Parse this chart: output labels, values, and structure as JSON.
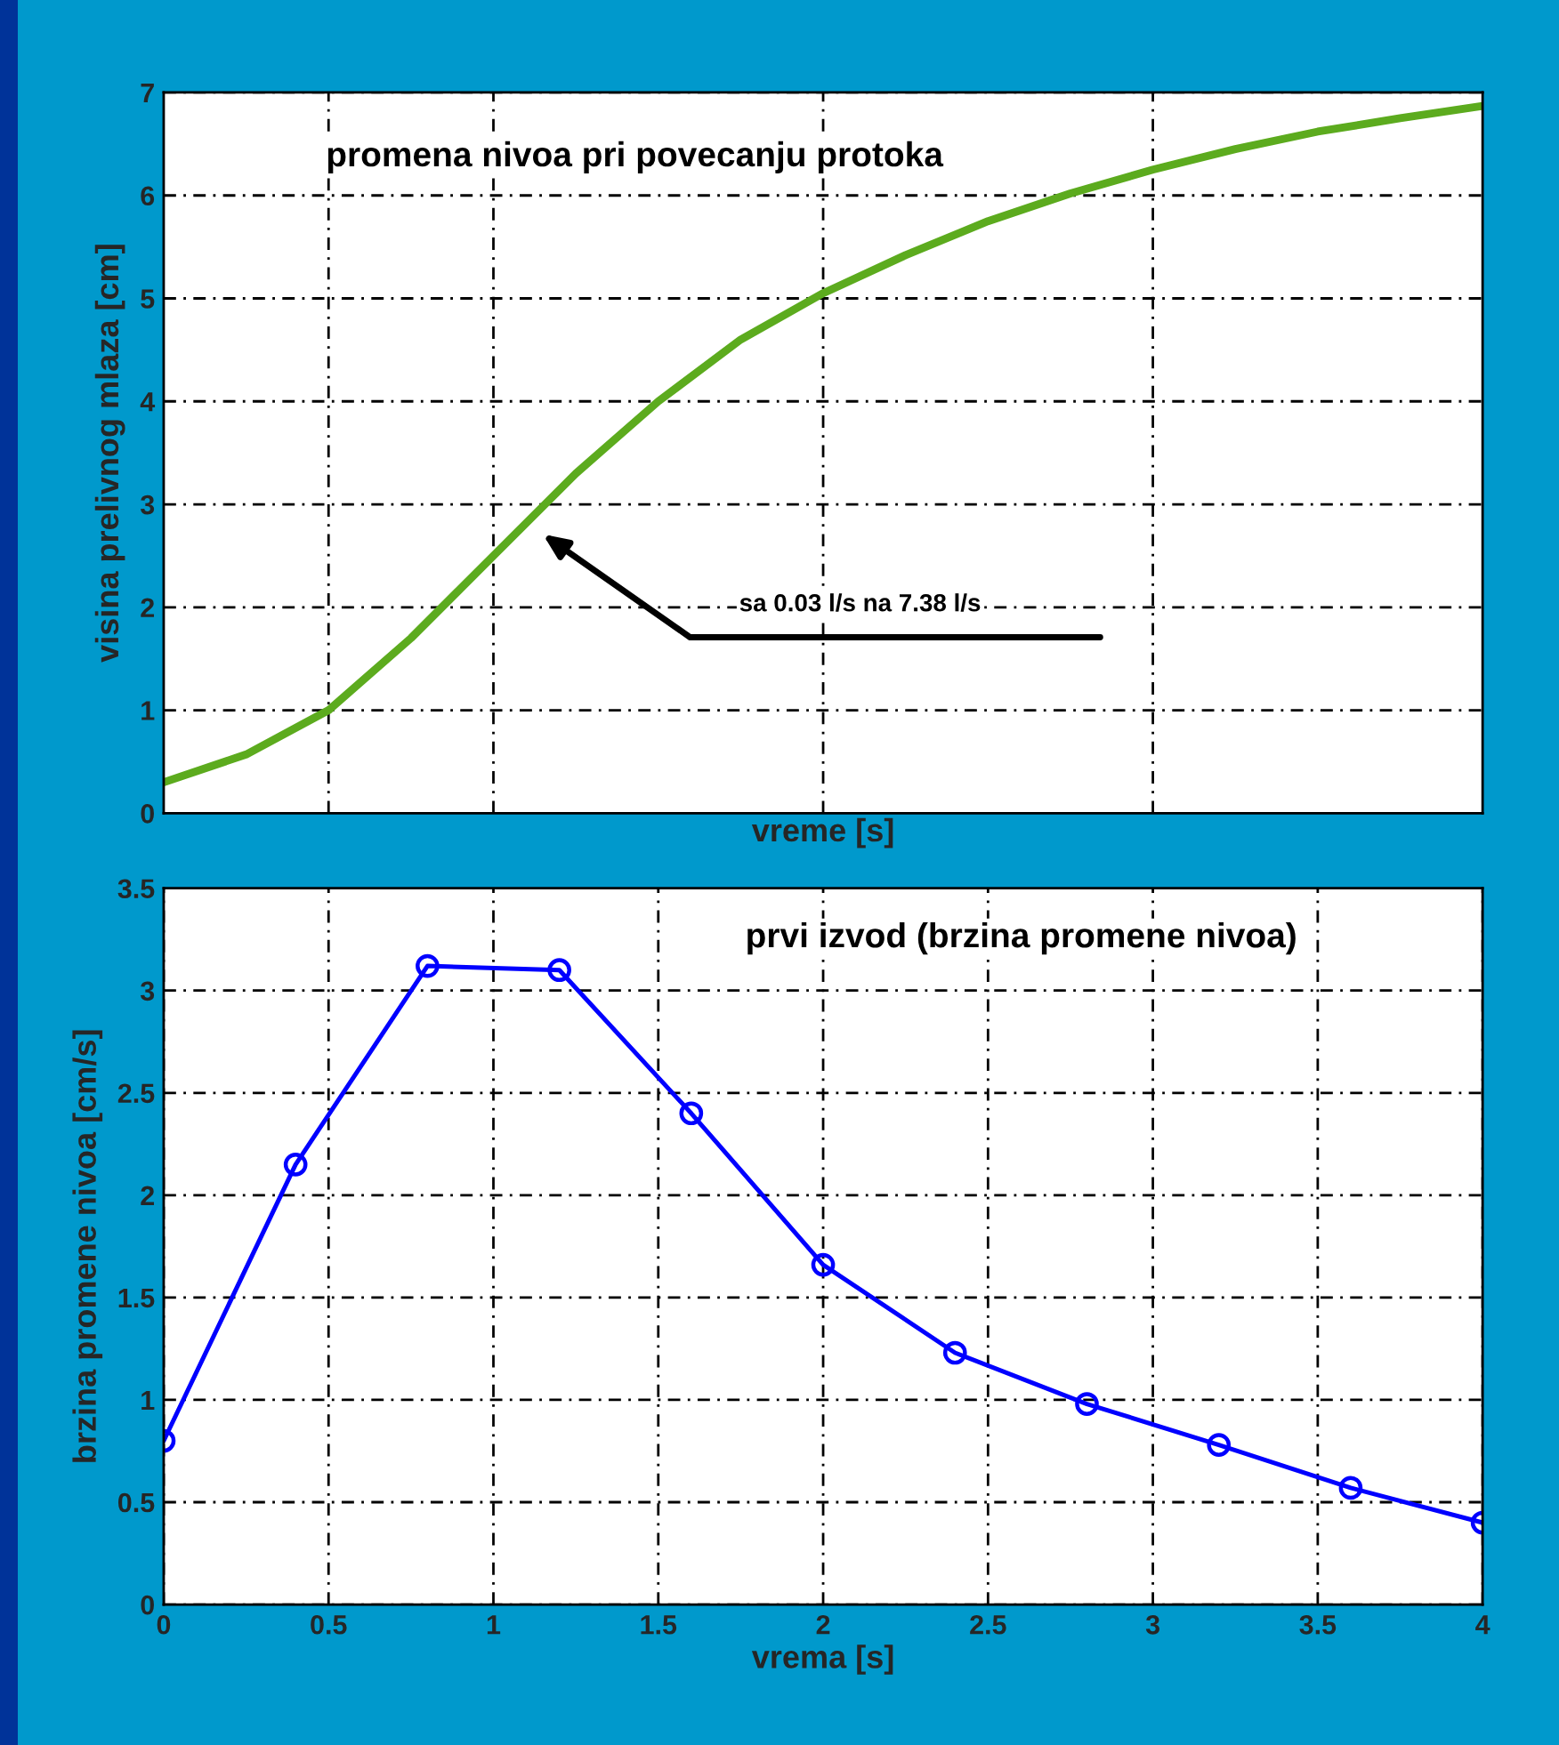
{
  "chart_data": [
    {
      "type": "line",
      "title": "promena nivoa pri povecanju protoka",
      "xlabel": "vreme [s]",
      "ylabel": "visina prelivnog mlaza [cm]",
      "x": [
        0,
        0.25,
        0.5,
        0.75,
        1,
        1.25,
        1.5,
        1.75,
        2,
        2.25,
        2.5,
        2.75,
        3,
        3.25,
        3.5,
        3.75,
        4
      ],
      "series": [
        {
          "color": "#5cab1e",
          "values": [
            0.3,
            0.57,
            1.0,
            1.7,
            2.5,
            3.3,
            4.0,
            4.6,
            5.05,
            5.42,
            5.75,
            6.02,
            6.25,
            6.45,
            6.62,
            6.75,
            6.87
          ]
        }
      ],
      "xlim": [
        0,
        4
      ],
      "xticks": [
        0.5,
        1,
        2,
        3
      ],
      "ylim": [
        0,
        7
      ],
      "yticks": [
        0,
        1,
        2,
        3,
        4,
        5,
        6,
        7
      ],
      "tick_labels": "y",
      "grid": true,
      "marker": "none",
      "line_style": "solid",
      "annotations": [
        "sa 0.03 l/s na 7.38 l/s"
      ]
    },
    {
      "type": "line",
      "title": "prvi izvod (brzina promene nivoa)",
      "xlabel": "vrema [s]",
      "ylabel": "brzina promene nivoa [cm/s]",
      "x": [
        0,
        0.4,
        0.8,
        1.2,
        1.6,
        2.0,
        2.4,
        2.8,
        3.2,
        3.6,
        4.0
      ],
      "series": [
        {
          "color": "#0000ff",
          "values": [
            0.8,
            2.15,
            3.12,
            3.1,
            2.4,
            1.66,
            1.23,
            0.98,
            0.78,
            0.57,
            0.4
          ]
        }
      ],
      "xlim": [
        0,
        4
      ],
      "xticks": [
        0,
        0.5,
        1,
        1.5,
        2,
        2.5,
        3,
        3.5,
        4
      ],
      "ylim": [
        0,
        3.5
      ],
      "yticks": [
        0,
        0.5,
        1,
        1.5,
        2,
        2.5,
        3,
        3.5
      ],
      "grid": true,
      "marker": "circle",
      "line_style": "solid"
    }
  ]
}
